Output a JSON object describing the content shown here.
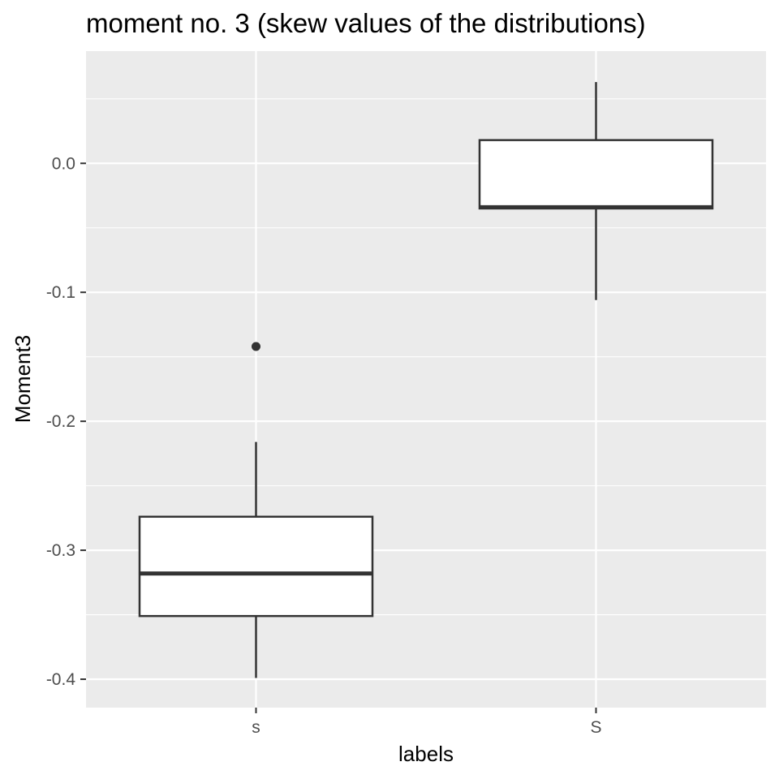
{
  "chart_data": {
    "type": "boxplot",
    "title": "moment no. 3 (skew values of the distributions)",
    "xlabel": "labels",
    "ylabel": "Moment3",
    "categories": [
      "s",
      "S"
    ],
    "ylim": [
      -0.422,
      0.087
    ],
    "yticks": [
      {
        "value": 0.0,
        "label": "0.0"
      },
      {
        "value": -0.1,
        "label": "-0.1"
      },
      {
        "value": -0.2,
        "label": "-0.2"
      },
      {
        "value": -0.3,
        "label": "-0.3"
      },
      {
        "value": -0.4,
        "label": "-0.4"
      }
    ],
    "boxes": [
      {
        "category": "s",
        "whisker_low": -0.399,
        "q1": -0.351,
        "median": -0.318,
        "q3": -0.274,
        "whisker_high": -0.216,
        "outliers": [
          -0.142
        ]
      },
      {
        "category": "S",
        "whisker_low": -0.106,
        "q1": -0.035,
        "median": -0.034,
        "q3": 0.018,
        "whisker_high": 0.063,
        "outliers": []
      }
    ],
    "grid": true,
    "legend": "none",
    "colors": {
      "panel": "#ebebeb",
      "grid": "#ffffff",
      "box_fill": "#ffffff",
      "box_line": "#333333",
      "tick_text": "#4d4d4d"
    }
  }
}
